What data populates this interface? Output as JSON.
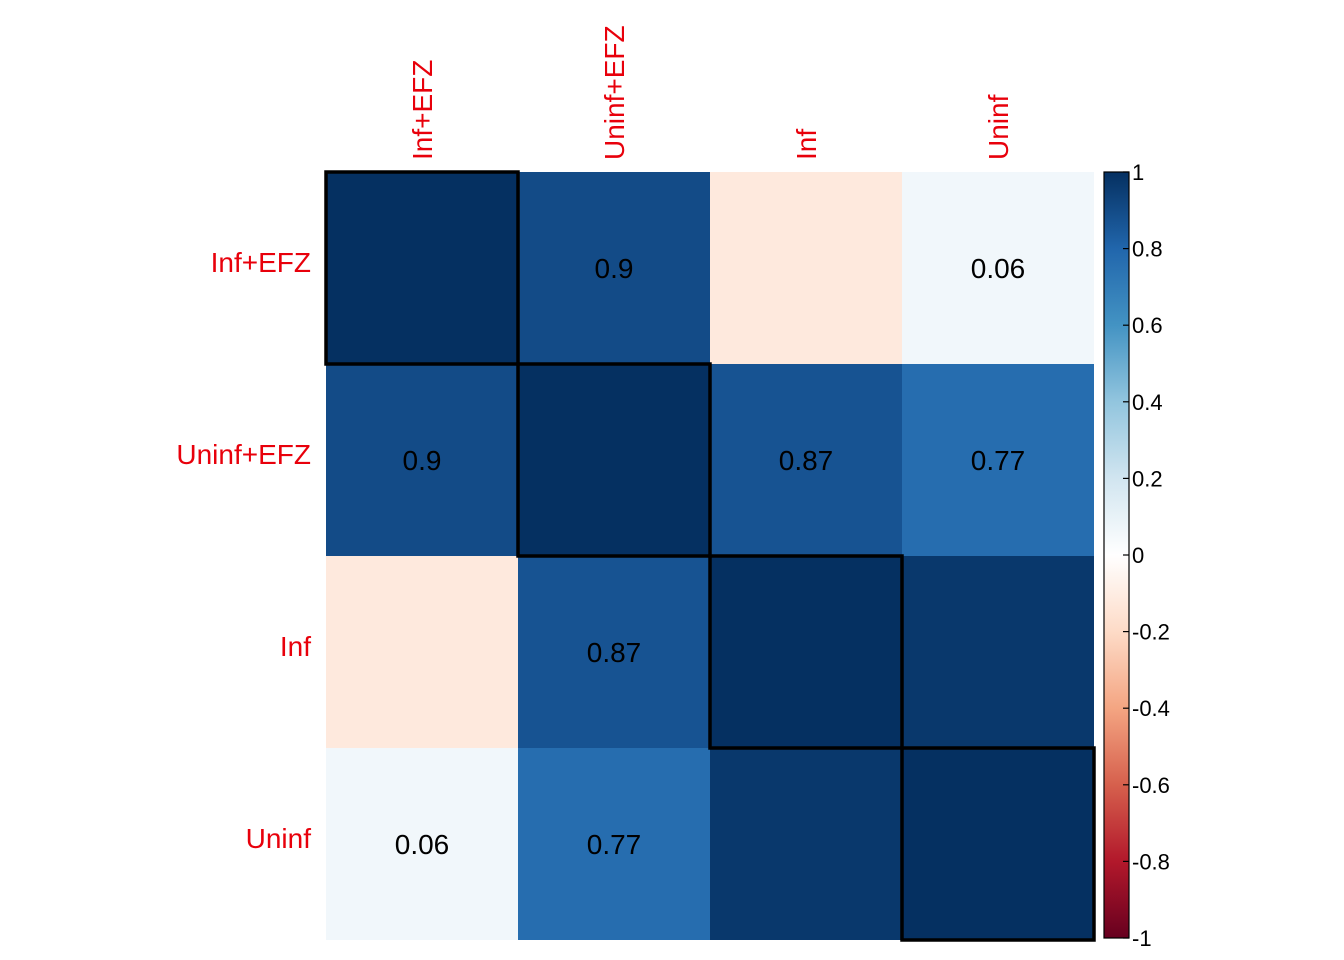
{
  "chart_data": {
    "type": "heatmap",
    "variables": [
      "Inf+EFZ",
      "Uninf+EFZ",
      "Inf",
      "Uninf"
    ],
    "matrix": [
      [
        1.0,
        0.9,
        -0.12,
        0.06
      ],
      [
        0.9,
        1.0,
        0.87,
        0.77
      ],
      [
        -0.12,
        0.87,
        1.0,
        0.97
      ],
      [
        0.06,
        0.77,
        0.97,
        1.0
      ]
    ],
    "cell_labels": [
      [
        "",
        "0.9",
        "",
        "0.06"
      ],
      [
        "0.9",
        "",
        "0.87",
        "0.77"
      ],
      [
        "",
        "0.87",
        "",
        ""
      ],
      [
        "0.06",
        "0.77",
        "",
        ""
      ]
    ],
    "clusters": [
      [
        0,
        0
      ],
      [
        1,
        1
      ],
      [
        2,
        2
      ],
      [
        3,
        3
      ]
    ],
    "colorbar": {
      "range": [
        -1,
        1
      ],
      "ticks": [
        "1",
        "0.8",
        "0.6",
        "0.4",
        "0.2",
        "0",
        "-0.2",
        "-0.4",
        "-0.6",
        "-0.8",
        "-1"
      ],
      "tick_values": [
        1,
        0.8,
        0.6,
        0.4,
        0.2,
        0,
        -0.2,
        -0.4,
        -0.6,
        -0.8,
        -1
      ],
      "placement": "right"
    },
    "palette": [
      "#67001F",
      "#B2182B",
      "#D6604D",
      "#F4A582",
      "#FDDBC7",
      "#FFFFFF",
      "#D1E5F0",
      "#92C5DE",
      "#4393C3",
      "#2166AC",
      "#053061"
    ],
    "label_color": "#E8000B",
    "title": "",
    "xlabel": "",
    "ylabel": ""
  }
}
